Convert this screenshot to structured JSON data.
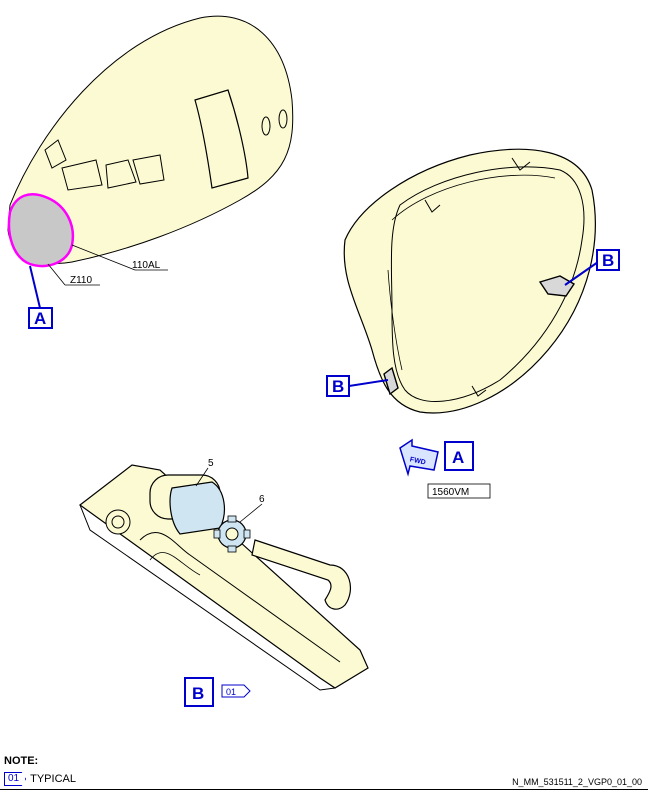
{
  "callouts": {
    "a_nose": "A",
    "b_upper": "B",
    "b_lower": "B",
    "a_view": "A",
    "b_view": "B"
  },
  "labels": {
    "zone_110al": "110AL",
    "zone_z110": "Z110",
    "fwd_marker": "FWD",
    "view_ref": "1560VM",
    "item_5": "5",
    "item_6": "6",
    "view_b_tag": "01"
  },
  "note": {
    "title": "NOTE:",
    "tag": "01",
    "text": "TYPICAL"
  },
  "doc_id": "N_MM_531511_2_VGP0_01_00",
  "colors": {
    "body_fill": "#fbfad2",
    "highlight": "#ff00ff",
    "callout": "#0000cc",
    "part_blue": "#cfe6f2"
  }
}
